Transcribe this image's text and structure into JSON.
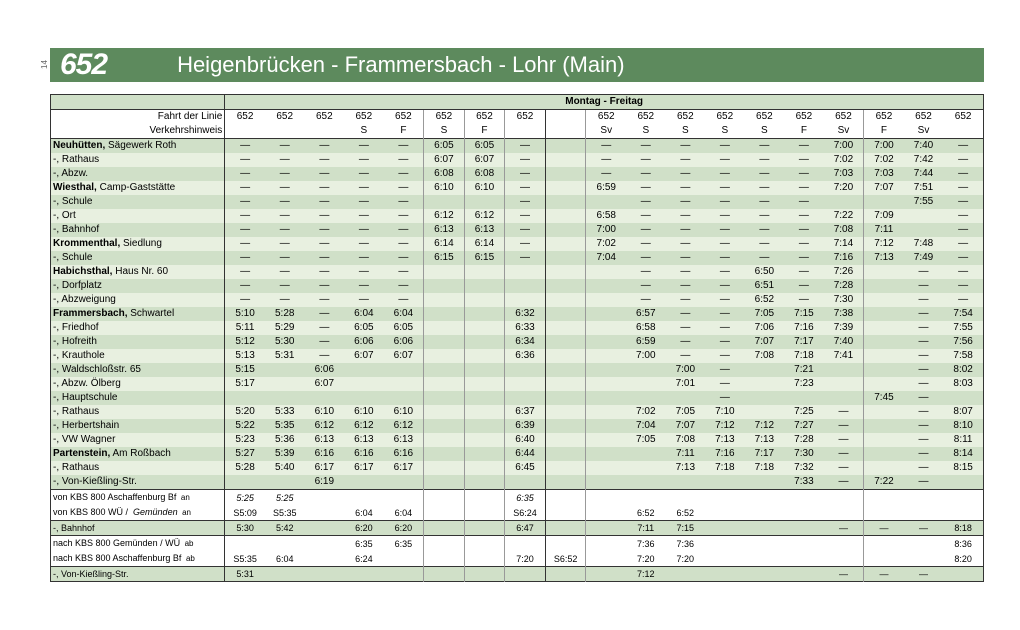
{
  "header": {
    "route_number": "652",
    "route_title": "Heigenbrücken - Frammersbach - Lohr (Main)",
    "page_num": "14"
  },
  "day_header": "Montag - Freitag",
  "meta_rows": [
    {
      "label": "Fahrt der Linie",
      "cls": "r0",
      "cells": [
        "652",
        "652",
        "652",
        "652",
        "652",
        "652",
        "652",
        "652",
        "",
        "652",
        "652",
        "652",
        "652",
        "652",
        "652",
        "652",
        "652",
        "652",
        "652"
      ]
    },
    {
      "label": "Verkehrshinweis",
      "cls": "r0 botb",
      "cells": [
        "",
        "",
        "",
        "S",
        "F",
        "S",
        "F",
        "",
        "",
        "Sv",
        "S",
        "S",
        "S",
        "S",
        "F",
        "Sv",
        "F",
        "Sv",
        ""
      ]
    }
  ],
  "stops": [
    {
      "name": "<b>Neuhütten,</b> Sägewerk Roth",
      "cls": "r1",
      "cells": [
        "—",
        "—",
        "—",
        "—",
        "—",
        "6:05",
        "6:05",
        "—",
        "",
        "—",
        "—",
        "—",
        "—",
        "—",
        "—",
        "7:00",
        "7:00",
        "7:40",
        "—"
      ]
    },
    {
      "name": "-, Rathaus",
      "cls": "r2",
      "cells": [
        "—",
        "—",
        "—",
        "—",
        "—",
        "6:07",
        "6:07",
        "—",
        "",
        "—",
        "—",
        "—",
        "—",
        "—",
        "—",
        "7:02",
        "7:02",
        "7:42",
        "—"
      ]
    },
    {
      "name": "-, Abzw.",
      "cls": "r1",
      "cells": [
        "—",
        "—",
        "—",
        "—",
        "—",
        "6:08",
        "6:08",
        "—",
        "",
        "—",
        "—",
        "—",
        "—",
        "—",
        "—",
        "7:03",
        "7:03",
        "7:44",
        "—"
      ]
    },
    {
      "name": "<b>Wiesthal,</b> Camp-Gaststätte",
      "cls": "r2",
      "cells": [
        "—",
        "—",
        "—",
        "—",
        "—",
        "6:10",
        "6:10",
        "—",
        "",
        "6:59",
        "—",
        "—",
        "—",
        "—",
        "—",
        "7:20",
        "7:07",
        "7:51",
        "—"
      ]
    },
    {
      "name": "-, Schule",
      "cls": "r1",
      "cells": [
        "—",
        "—",
        "—",
        "—",
        "—",
        "",
        "",
        "—",
        "",
        "",
        "—",
        "—",
        "—",
        "—",
        "—",
        "",
        "",
        "7:55",
        "—"
      ]
    },
    {
      "name": "-, Ort",
      "cls": "r2",
      "cells": [
        "—",
        "—",
        "—",
        "—",
        "—",
        "6:12",
        "6:12",
        "—",
        "",
        "6:58",
        "—",
        "—",
        "—",
        "—",
        "—",
        "7:22",
        "7:09",
        "",
        "—"
      ]
    },
    {
      "name": "-, Bahnhof",
      "cls": "r1",
      "cells": [
        "—",
        "—",
        "—",
        "—",
        "—",
        "6:13",
        "6:13",
        "—",
        "",
        "7:00",
        "—",
        "—",
        "—",
        "—",
        "—",
        "7:08",
        "7:11",
        "",
        "—"
      ]
    },
    {
      "name": "<b>Krommenthal,</b> Siedlung",
      "cls": "r2",
      "cells": [
        "—",
        "—",
        "—",
        "—",
        "—",
        "6:14",
        "6:14",
        "—",
        "",
        "7:02",
        "—",
        "—",
        "—",
        "—",
        "—",
        "7:14",
        "7:12",
        "7:48",
        "—"
      ]
    },
    {
      "name": "-, Schule",
      "cls": "r1",
      "cells": [
        "—",
        "—",
        "—",
        "—",
        "—",
        "6:15",
        "6:15",
        "—",
        "",
        "7:04",
        "—",
        "—",
        "—",
        "—",
        "—",
        "7:16",
        "7:13",
        "7:49",
        "—"
      ]
    },
    {
      "name": "<b>Habichsthal,</b> Haus Nr. 60",
      "cls": "r2",
      "cells": [
        "—",
        "—",
        "—",
        "—",
        "—",
        "",
        "",
        "",
        "",
        "",
        "—",
        "—",
        "—",
        "6:50",
        "—",
        "7:26",
        "",
        "—",
        "—"
      ]
    },
    {
      "name": "-, Dorfplatz",
      "cls": "r1",
      "cells": [
        "—",
        "—",
        "—",
        "—",
        "—",
        "",
        "",
        "",
        "",
        "",
        "—",
        "—",
        "—",
        "6:51",
        "—",
        "7:28",
        "",
        "—",
        "—"
      ]
    },
    {
      "name": "-, Abzweigung",
      "cls": "r2",
      "cells": [
        "—",
        "—",
        "—",
        "—",
        "—",
        "",
        "",
        "",
        "",
        "",
        "—",
        "—",
        "—",
        "6:52",
        "—",
        "7:30",
        "",
        "—",
        "—"
      ]
    },
    {
      "name": "<b>Frammersbach,</b> Schwartel",
      "cls": "r1",
      "cells": [
        "5:10",
        "5:28",
        "—",
        "6:04",
        "6:04",
        "",
        "",
        "6:32",
        "",
        "",
        "6:57",
        "—",
        "—",
        "7:05",
        "7:15",
        "7:38",
        "",
        "—",
        "7:54"
      ]
    },
    {
      "name": "-, Friedhof",
      "cls": "r2",
      "cells": [
        "5:11",
        "5:29",
        "—",
        "6:05",
        "6:05",
        "",
        "",
        "6:33",
        "",
        "",
        "6:58",
        "—",
        "—",
        "7:06",
        "7:16",
        "7:39",
        "",
        "—",
        "7:55"
      ]
    },
    {
      "name": "-, Hofreith",
      "cls": "r1",
      "cells": [
        "5:12",
        "5:30",
        "—",
        "6:06",
        "6:06",
        "",
        "",
        "6:34",
        "",
        "",
        "6:59",
        "—",
        "—",
        "7:07",
        "7:17",
        "7:40",
        "",
        "—",
        "7:56"
      ]
    },
    {
      "name": "-, Krauthole",
      "cls": "r2",
      "cells": [
        "5:13",
        "5:31",
        "—",
        "6:07",
        "6:07",
        "",
        "",
        "6:36",
        "",
        "",
        "7:00",
        "—",
        "—",
        "7:08",
        "7:18",
        "7:41",
        "",
        "—",
        "7:58"
      ]
    },
    {
      "name": "-, Waldschloßstr. 65",
      "cls": "r1",
      "cells": [
        "5:15",
        "",
        "6:06",
        "",
        "",
        "",
        "",
        "",
        "",
        "",
        "",
        "7:00",
        "—",
        "",
        "7:21",
        "",
        "",
        "—",
        "8:02"
      ]
    },
    {
      "name": "-, Abzw. Ölberg",
      "cls": "r2",
      "cells": [
        "5:17",
        "",
        "6:07",
        "",
        "",
        "",
        "",
        "",
        "",
        "",
        "",
        "7:01",
        "—",
        "",
        "7:23",
        "",
        "",
        "—",
        "8:03"
      ]
    },
    {
      "name": "-, Hauptschule",
      "cls": "r1",
      "cells": [
        "",
        "",
        "",
        "",
        "",
        "",
        "",
        "",
        "",
        "",
        "",
        "",
        "—",
        "",
        "",
        "",
        "7:45",
        "—",
        ""
      ]
    },
    {
      "name": "-, Rathaus",
      "cls": "r2",
      "cells": [
        "5:20",
        "5:33",
        "6:10",
        "6:10",
        "6:10",
        "",
        "",
        "6:37",
        "",
        "",
        "7:02",
        "7:05",
        "7:10",
        "",
        "7:25",
        "—",
        "",
        "—",
        "8:07"
      ]
    },
    {
      "name": "-, Herbertshain",
      "cls": "r1",
      "cells": [
        "5:22",
        "5:35",
        "6:12",
        "6:12",
        "6:12",
        "",
        "",
        "6:39",
        "",
        "",
        "7:04",
        "7:07",
        "7:12",
        "7:12",
        "7:27",
        "—",
        "",
        "—",
        "8:10"
      ]
    },
    {
      "name": "-, VW Wagner",
      "cls": "r2",
      "cells": [
        "5:23",
        "5:36",
        "6:13",
        "6:13",
        "6:13",
        "",
        "",
        "6:40",
        "",
        "",
        "7:05",
        "7:08",
        "7:13",
        "7:13",
        "7:28",
        "—",
        "",
        "—",
        "8:11"
      ]
    },
    {
      "name": "<b>Partenstein,</b> Am Roßbach",
      "cls": "r1",
      "cells": [
        "5:27",
        "5:39",
        "6:16",
        "6:16",
        "6:16",
        "",
        "",
        "6:44",
        "",
        "",
        "",
        "7:11",
        "7:16",
        "7:17",
        "7:30",
        "—",
        "",
        "—",
        "8:14"
      ]
    },
    {
      "name": "-, Rathaus",
      "cls": "r2",
      "cells": [
        "5:28",
        "5:40",
        "6:17",
        "6:17",
        "6:17",
        "",
        "",
        "6:45",
        "",
        "",
        "",
        "7:13",
        "7:18",
        "7:18",
        "7:32",
        "—",
        "",
        "—",
        "8:15"
      ]
    },
    {
      "name": "-, Von-Kießling-Str.",
      "cls": "r1 botb",
      "cells": [
        "",
        "",
        "6:19",
        "",
        "",
        "",
        "",
        "",
        "",
        "",
        "",
        "",
        "",
        "",
        "7:33",
        "—",
        "7:22",
        "—",
        ""
      ]
    }
  ],
  "conn": [
    {
      "name": "von KBS 800 Aschaffenburg Bf",
      "tag": "an",
      "cls": "r0",
      "cells": [
        "<i>5:25</i>",
        "<i>5:25</i>",
        "",
        "",
        "",
        "",
        "",
        "<i>6:35</i>",
        "",
        "",
        "",
        "",
        "",
        "",
        "",
        "",
        "",
        "",
        ""
      ]
    },
    {
      "name": "von KBS 800 WÜ / &nbsp;<i>Gemünden</i>",
      "tag": "an",
      "cls": "r0 botb",
      "cells": [
        "S5:09",
        "S5:35",
        "",
        "6:04",
        "6:04",
        "",
        "",
        "S6:24",
        "",
        "",
        "6:52",
        "6:52",
        "",
        "",
        "",
        "",
        "",
        "",
        ""
      ]
    },
    {
      "name": "-, Bahnhof",
      "tag": "",
      "cls": "r1 botb",
      "cells": [
        "5:30",
        "5:42",
        "",
        "6:20",
        "6:20",
        "",
        "",
        "6:47",
        "",
        "",
        "7:11",
        "7:15",
        "",
        "",
        "",
        "—",
        "—",
        "—",
        "8:18"
      ]
    },
    {
      "name": "nach KBS 800 Gemünden / WÜ",
      "tag": "ab",
      "cls": "r0",
      "cells": [
        "",
        "",
        "",
        "6:35",
        "6:35",
        "",
        "",
        "",
        "",
        "",
        "7:36",
        "7:36",
        "",
        "",
        "",
        "",
        "",
        "",
        "8:36"
      ]
    },
    {
      "name": "nach KBS 800 Aschaffenburg Bf",
      "tag": "ab",
      "cls": "r0 botb",
      "cells": [
        "S5:35",
        "6:04",
        "",
        "6:24",
        "",
        "",
        "",
        "7:20",
        "S6:52",
        "",
        "7:20",
        "7:20",
        "",
        "",
        "",
        "",
        "",
        "",
        "8:20"
      ]
    },
    {
      "name": "-, Von-Kießling-Str.",
      "tag": "",
      "cls": "r1",
      "cells": [
        "5:31",
        "",
        "",
        "",
        "",
        "",
        "",
        "",
        "",
        "",
        "7:12",
        "",
        "",
        "",
        "",
        "—",
        "—",
        "—",
        ""
      ]
    }
  ],
  "ncols": 19,
  "seps": [
    9
  ],
  "thinseps": [
    6,
    7,
    8,
    10,
    17
  ],
  "colors": {
    "header_bg": "#5d8a5d",
    "row_dark": "#d0e0c8",
    "row_light": "#e8f0e0"
  }
}
